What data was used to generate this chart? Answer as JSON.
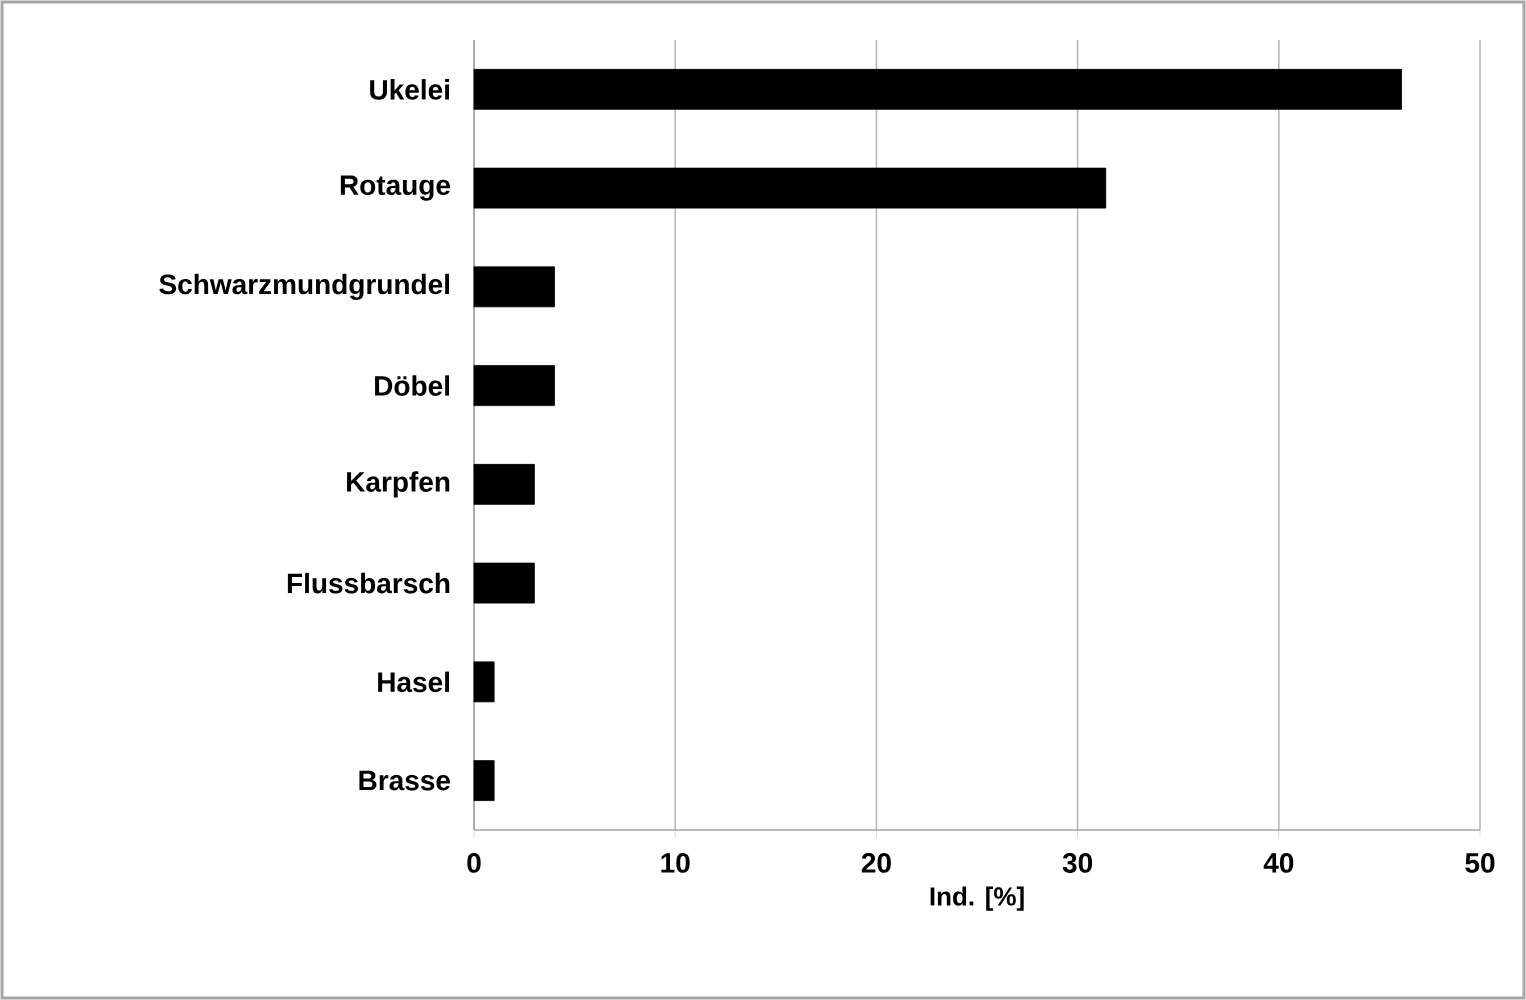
{
  "chart_data": {
    "type": "bar",
    "orientation": "horizontal",
    "xlabel": "Ind. [%]",
    "categories": [
      "Ukelei",
      "Rotauge",
      "Schwarzmundgrundel",
      "Döbel",
      "Karpfen",
      "Flussbarsch",
      "Hasel",
      "Brasse"
    ],
    "values": [
      46.1,
      31.4,
      4.0,
      4.0,
      3.0,
      3.0,
      1.0,
      1.0
    ],
    "color": "#000000",
    "xlim": [
      0,
      50
    ],
    "xticks": [
      0,
      10,
      20,
      30,
      40,
      50
    ],
    "grid": "x"
  }
}
